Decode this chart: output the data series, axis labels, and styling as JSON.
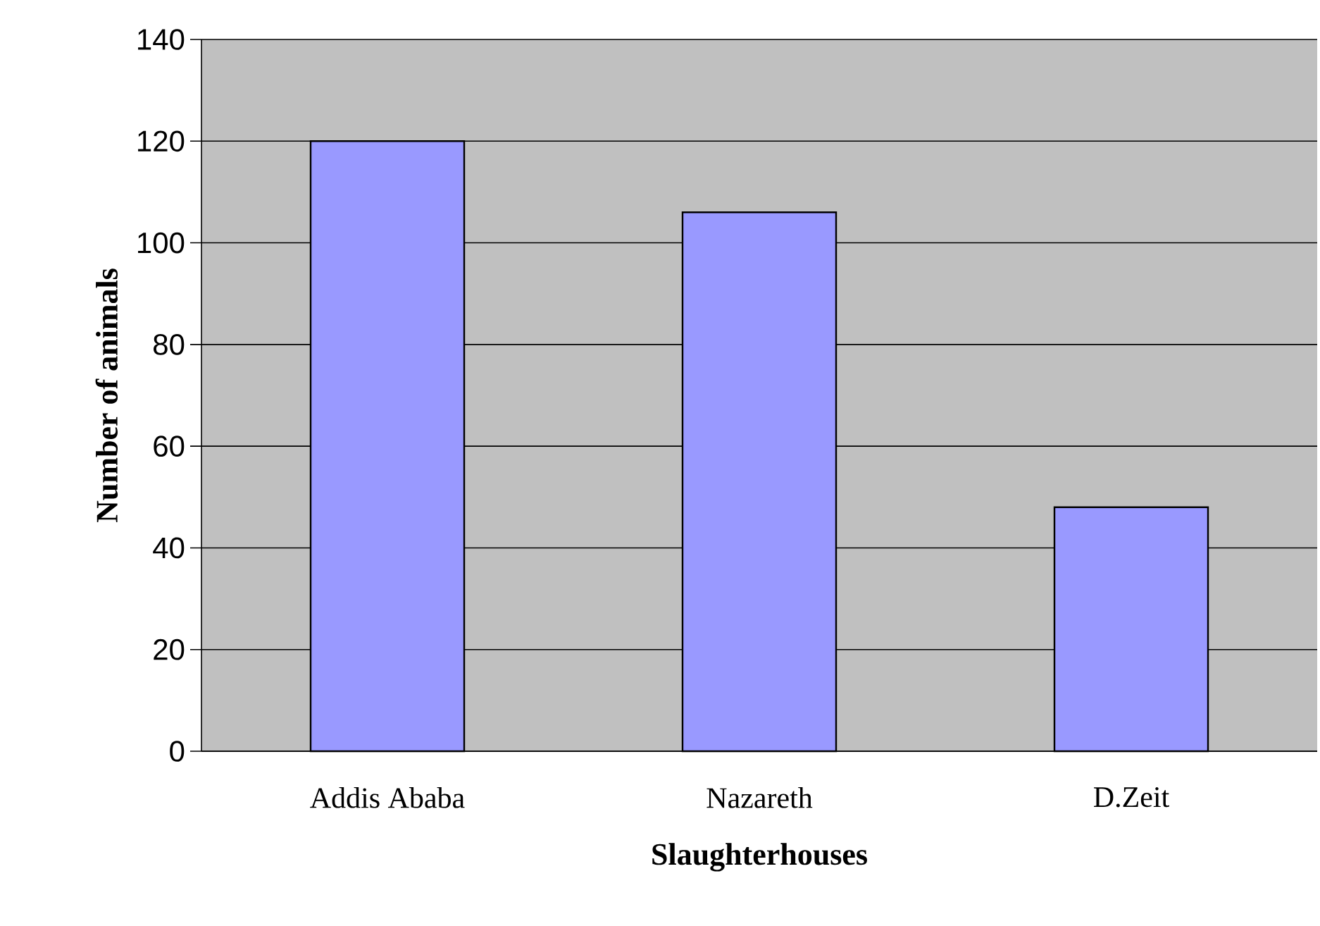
{
  "chart_data": {
    "type": "bar",
    "xlabel": "Slaughterhouses",
    "ylabel": "Number of animals",
    "categories": [
      "Addis Ababa",
      "Nazareth",
      "D.Zeit"
    ],
    "values": [
      120,
      106,
      48
    ],
    "color": "#9999ff",
    "ylim": [
      0,
      140
    ],
    "yticks": [
      0,
      20,
      40,
      60,
      80,
      100,
      120,
      140
    ],
    "grid": "y"
  }
}
